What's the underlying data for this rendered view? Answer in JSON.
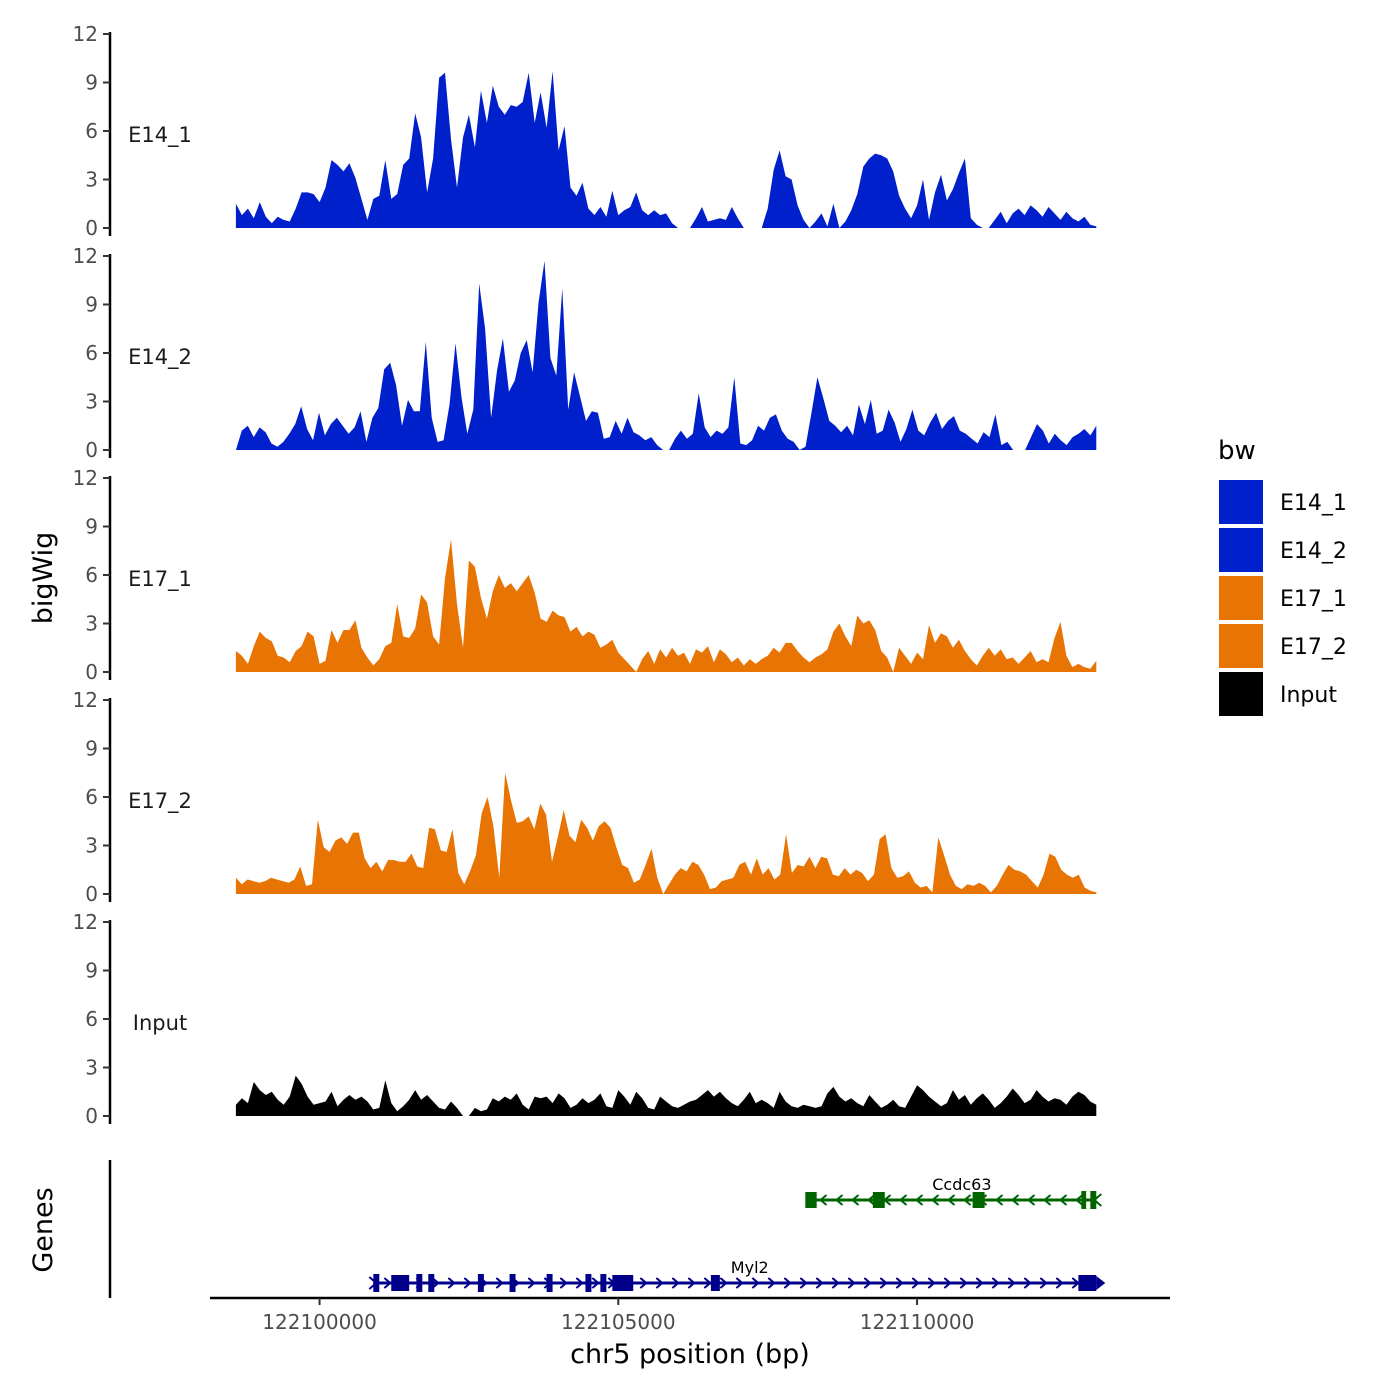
{
  "chart_data": {
    "type": "area",
    "xlabel": "chr5 position (bp)",
    "ylabel": "bigWig",
    "genes_label": "Genes",
    "x_range": [
      122098200,
      122114200
    ],
    "x_ticks": [
      122100000,
      122105000,
      122110000
    ],
    "x_tick_labels": [
      "122100000",
      "122105000",
      "122110000"
    ],
    "y_range": [
      0,
      12
    ],
    "y_ticks": [
      0,
      3,
      6,
      9,
      12
    ],
    "y_tick_labels": [
      "0",
      "3",
      "6",
      "9",
      "12"
    ],
    "data_x_start": 122098600,
    "data_x_end": 122113000,
    "legend": {
      "title": "bw",
      "entries": [
        {
          "label": "E14_1",
          "color": "#0020CC"
        },
        {
          "label": "E14_2",
          "color": "#0020CC"
        },
        {
          "label": "E17_1",
          "color": "#E87503"
        },
        {
          "label": "E17_2",
          "color": "#E87503"
        },
        {
          "label": "Input",
          "color": "#000000"
        }
      ]
    },
    "series": [
      {
        "name": "E14_1",
        "color": "#0020CC",
        "values": [
          1.5,
          0.8,
          1.2,
          0.6,
          1.6,
          0.7,
          0.3,
          0.7,
          0.5,
          0.4,
          1.2,
          2.2,
          2.2,
          2.1,
          1.6,
          2.5,
          4.2,
          3.9,
          3.5,
          4.0,
          3.1,
          1.8,
          0.5,
          1.8,
          2.0,
          4.2,
          1.8,
          2.1,
          3.9,
          4.3,
          7.1,
          5.6,
          2.2,
          4.3,
          9.3,
          9.6,
          5.5,
          2.5,
          5.6,
          7.0,
          5.0,
          8.5,
          6.5,
          8.8,
          7.5,
          7.0,
          7.6,
          7.5,
          7.8,
          9.6,
          6.5,
          8.4,
          6.2,
          9.7,
          4.8,
          6.3,
          2.5,
          2.0,
          2.8,
          1.2,
          0.8,
          1.3,
          0.7,
          2.3,
          0.8,
          1.1,
          1.3,
          2.2,
          1.1,
          0.8,
          1.1,
          0.8,
          0.9,
          0.3,
          0.0,
          0.0,
          0.0,
          0.6,
          1.3,
          0.4,
          0.5,
          0.6,
          0.5,
          1.3,
          0.6,
          0.0,
          0.0,
          0.0,
          0.0,
          1.2,
          3.6,
          4.8,
          3.2,
          3.0,
          1.4,
          0.5,
          0.0,
          0.4,
          0.9,
          0.1,
          1.5,
          0.0,
          0.4,
          1.1,
          2.1,
          3.8,
          4.3,
          4.6,
          4.5,
          4.3,
          3.5,
          2.0,
          1.2,
          0.6,
          1.4,
          3.0,
          0.5,
          2.2,
          3.3,
          1.7,
          2.4,
          3.4,
          4.3,
          0.6,
          0.2,
          0.0,
          0.0,
          0.5,
          1.0,
          0.3,
          0.9,
          1.2,
          0.8,
          1.4,
          1.1,
          0.7,
          1.3,
          0.9,
          0.5,
          1.0,
          0.6,
          0.4,
          0.7,
          0.2,
          0.1
        ]
      },
      {
        "name": "E14_2",
        "color": "#0020CC",
        "values": [
          0.0,
          1.2,
          1.5,
          0.8,
          1.4,
          1.1,
          0.4,
          0.2,
          0.5,
          1.0,
          1.6,
          2.7,
          1.3,
          0.6,
          2.3,
          0.9,
          1.6,
          2.0,
          1.5,
          1.0,
          1.4,
          2.4,
          0.5,
          2.0,
          2.6,
          5.0,
          5.4,
          4.0,
          1.5,
          3.1,
          2.4,
          2.4,
          6.7,
          2.0,
          0.5,
          0.6,
          2.8,
          6.6,
          3.3,
          1.0,
          2.5,
          10.3,
          7.5,
          2.0,
          4.9,
          6.9,
          3.6,
          4.3,
          6.0,
          6.8,
          4.8,
          9.1,
          11.7,
          5.7,
          4.6,
          10.0,
          2.5,
          4.8,
          3.3,
          1.8,
          2.4,
          2.3,
          0.7,
          0.8,
          1.8,
          1.0,
          2.0,
          1.1,
          0.9,
          0.6,
          0.8,
          0.3,
          0.0,
          0.0,
          0.7,
          1.2,
          0.7,
          1.0,
          3.5,
          1.4,
          0.8,
          1.2,
          1.0,
          1.4,
          4.5,
          0.4,
          0.3,
          0.6,
          1.5,
          1.2,
          2.0,
          2.2,
          1.2,
          0.7,
          0.5,
          0.0,
          0.2,
          2.3,
          4.5,
          3.2,
          1.8,
          1.5,
          1.1,
          1.5,
          0.9,
          2.8,
          1.6,
          3.1,
          1.0,
          1.2,
          2.5,
          1.7,
          0.5,
          1.3,
          2.5,
          1.2,
          0.9,
          1.7,
          2.3,
          1.3,
          1.8,
          2.1,
          1.2,
          1.0,
          0.7,
          0.4,
          1.1,
          0.8,
          2.2,
          0.3,
          0.5,
          0.0,
          0.0,
          0.0,
          0.8,
          1.6,
          1.2,
          0.4,
          1.0,
          0.6,
          0.3,
          0.8,
          1.0,
          1.3,
          0.9,
          1.5
        ]
      },
      {
        "name": "E17_1",
        "color": "#E87503",
        "values": [
          1.3,
          1.0,
          0.5,
          1.6,
          2.5,
          2.1,
          1.9,
          1.0,
          0.9,
          0.6,
          1.3,
          1.6,
          2.5,
          2.2,
          0.5,
          0.7,
          2.6,
          1.8,
          2.6,
          2.6,
          3.2,
          1.5,
          0.9,
          0.4,
          0.8,
          1.6,
          1.8,
          4.2,
          2.2,
          2.1,
          2.7,
          4.8,
          4.3,
          2.2,
          1.7,
          5.8,
          8.2,
          4.2,
          1.5,
          6.9,
          6.5,
          4.6,
          3.3,
          5.0,
          6.0,
          5.2,
          5.5,
          5.0,
          5.5,
          6.0,
          4.9,
          3.3,
          3.1,
          3.8,
          3.5,
          3.4,
          2.5,
          2.8,
          2.2,
          2.5,
          2.3,
          1.5,
          1.7,
          2.0,
          1.2,
          0.8,
          0.4,
          0.0,
          0.8,
          1.3,
          0.5,
          1.4,
          0.9,
          1.5,
          1.0,
          1.2,
          0.5,
          1.4,
          1.2,
          1.6,
          0.6,
          1.4,
          1.1,
          0.6,
          0.9,
          0.4,
          0.8,
          0.5,
          0.8,
          1.0,
          1.5,
          1.2,
          1.8,
          1.8,
          1.3,
          0.9,
          0.6,
          0.9,
          1.1,
          1.4,
          2.5,
          3.0,
          2.2,
          1.6,
          3.5,
          3.0,
          3.2,
          2.6,
          1.3,
          0.9,
          0.0,
          1.5,
          1.0,
          0.5,
          1.2,
          0.8,
          2.9,
          1.8,
          2.4,
          2.2,
          1.5,
          2.0,
          1.3,
          0.8,
          0.4,
          1.0,
          1.5,
          1.0,
          1.4,
          0.8,
          0.9,
          0.5,
          0.9,
          1.3,
          0.6,
          0.8,
          0.6,
          2.1,
          3.1,
          1.0,
          0.3,
          0.5,
          0.3,
          0.2,
          0.7
        ]
      },
      {
        "name": "E17_2",
        "color": "#E87503",
        "values": [
          1.0,
          0.6,
          0.9,
          0.8,
          0.7,
          0.8,
          1.0,
          0.9,
          0.8,
          0.7,
          0.9,
          1.7,
          0.5,
          0.6,
          4.6,
          2.9,
          2.6,
          3.3,
          3.5,
          3.1,
          3.8,
          3.8,
          2.2,
          1.6,
          2.0,
          1.4,
          2.1,
          2.1,
          2.0,
          2.0,
          2.5,
          1.7,
          1.6,
          4.1,
          4.0,
          2.7,
          2.6,
          4.0,
          1.3,
          0.6,
          1.4,
          2.4,
          5.0,
          6.0,
          4.2,
          1.0,
          7.5,
          5.8,
          4.4,
          4.5,
          4.8,
          4.0,
          5.6,
          4.9,
          2.0,
          3.5,
          5.2,
          3.6,
          3.2,
          4.6,
          4.1,
          3.3,
          4.2,
          4.5,
          4.1,
          2.9,
          1.8,
          1.6,
          0.7,
          0.9,
          1.8,
          2.8,
          1.0,
          0.0,
          0.6,
          1.2,
          1.6,
          1.4,
          2.0,
          1.8,
          1.2,
          0.3,
          0.4,
          0.8,
          0.9,
          1.0,
          1.8,
          2.0,
          1.2,
          2.2,
          1.2,
          1.6,
          0.9,
          1.2,
          3.7,
          1.3,
          1.8,
          1.7,
          2.3,
          1.6,
          2.3,
          2.2,
          1.2,
          1.1,
          1.6,
          1.2,
          1.5,
          1.3,
          0.8,
          1.2,
          3.4,
          3.7,
          1.6,
          1.0,
          1.1,
          1.4,
          0.7,
          0.4,
          0.5,
          0.1,
          3.5,
          2.4,
          1.2,
          0.5,
          0.3,
          0.6,
          0.5,
          0.7,
          0.5,
          0.1,
          0.5,
          1.2,
          1.8,
          1.5,
          1.4,
          1.2,
          0.8,
          0.4,
          1.2,
          2.5,
          2.3,
          1.5,
          1.2,
          1.0,
          1.2,
          0.4,
          0.2,
          0.1
        ]
      },
      {
        "name": "Input",
        "color": "#000000",
        "values": [
          0.7,
          1.1,
          0.8,
          2.1,
          1.6,
          1.3,
          1.5,
          1.0,
          0.7,
          1.2,
          2.5,
          2.0,
          1.2,
          0.7,
          0.8,
          0.9,
          1.5,
          0.6,
          1.0,
          1.3,
          1.0,
          1.2,
          0.9,
          0.4,
          0.5,
          2.2,
          0.8,
          0.3,
          0.6,
          1.0,
          1.6,
          1.0,
          1.3,
          0.9,
          0.5,
          0.4,
          0.9,
          0.5,
          0.0,
          0.0,
          0.5,
          0.3,
          0.4,
          1.1,
          0.9,
          1.2,
          1.0,
          1.4,
          0.7,
          0.4,
          1.2,
          1.1,
          1.2,
          0.8,
          1.4,
          1.1,
          0.5,
          0.7,
          1.1,
          0.8,
          1.0,
          1.4,
          0.6,
          0.5,
          1.6,
          1.2,
          0.7,
          1.5,
          1.1,
          0.5,
          0.4,
          1.2,
          0.9,
          0.6,
          0.5,
          0.7,
          0.9,
          1.0,
          1.3,
          1.6,
          1.2,
          1.5,
          1.1,
          0.8,
          0.6,
          1.0,
          1.5,
          0.8,
          1.0,
          0.8,
          0.5,
          1.5,
          0.9,
          0.6,
          0.5,
          0.7,
          0.6,
          0.5,
          0.6,
          1.4,
          1.8,
          1.2,
          0.9,
          1.1,
          0.8,
          0.6,
          1.3,
          0.9,
          0.5,
          0.7,
          1.0,
          0.6,
          0.5,
          1.2,
          1.9,
          1.6,
          1.2,
          0.9,
          0.6,
          0.8,
          1.6,
          1.0,
          1.3,
          0.7,
          1.1,
          1.4,
          1.0,
          0.5,
          0.8,
          1.2,
          1.7,
          1.3,
          0.8,
          1.0,
          1.6,
          1.2,
          0.9,
          1.1,
          1.0,
          0.7,
          1.2,
          1.5,
          1.3,
          0.9,
          0.7
        ]
      }
    ],
    "genes": [
      {
        "name": "Ccdc63",
        "color": "#006400",
        "strand": "-",
        "start": 122108200,
        "end": 122113000,
        "exons": [
          [
            122108130,
            122108320
          ],
          [
            122109260,
            122109460
          ],
          [
            122110930,
            122111130
          ],
          [
            122112750,
            122112830
          ],
          [
            122112900,
            122113000
          ]
        ],
        "label_pos": 122110750
      },
      {
        "name": "Myl2",
        "color": "#00008B",
        "strand": "+",
        "start": 122100900,
        "end": 122113000,
        "exons": [
          [
            122100900,
            122101000
          ],
          [
            122101200,
            122101500
          ],
          [
            122101620,
            122101720
          ],
          [
            122101820,
            122101920
          ],
          [
            122102650,
            122102750
          ],
          [
            122103180,
            122103280
          ],
          [
            122103800,
            122103900
          ],
          [
            122104450,
            122104550
          ],
          [
            122104700,
            122104800
          ],
          [
            122104900,
            122105250
          ],
          [
            122106550,
            122106700
          ],
          [
            122112700,
            122113000
          ]
        ],
        "label_pos": 122107200
      }
    ]
  }
}
